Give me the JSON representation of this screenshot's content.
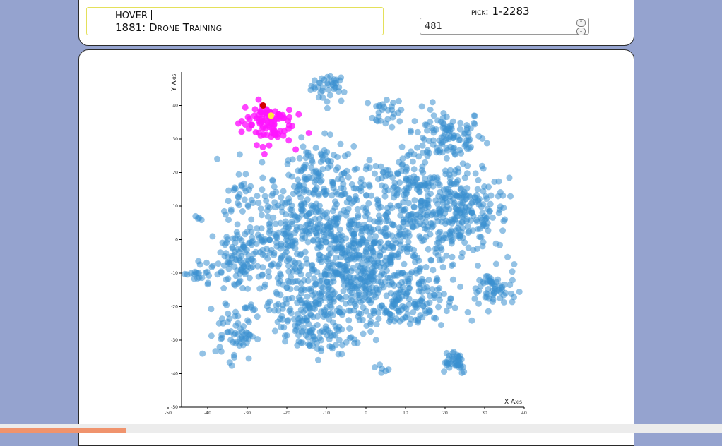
{
  "hover": {
    "label": "HOVER",
    "value": "1881: Drone Training"
  },
  "pick": {
    "label_prefix": "pick:",
    "range": "1-2283",
    "value": "481"
  },
  "colors": {
    "background": "#95a3cf",
    "point": "#3b8fd0",
    "selected_cluster": "#ff14ff",
    "picked_point": "#ffeb3b",
    "hover_point": "#d40000",
    "progress": "#f0936d"
  },
  "chart_data": {
    "type": "scatter",
    "xlabel": "X Axis",
    "ylabel": "Y Axis",
    "xlim": [
      -50,
      40
    ],
    "ylim": [
      -50,
      50
    ],
    "x_ticks": [
      "-50",
      "-40",
      "-30",
      "-20",
      "-10",
      "0",
      "10",
      "20",
      "30",
      "40"
    ],
    "y_ticks": [
      "-50",
      "-40",
      "-30",
      "-20",
      "-10",
      "0",
      "10",
      "20",
      "30",
      "40"
    ],
    "total_points": 2283,
    "clusters": [
      {
        "cx": -9,
        "cy": 46,
        "sx": 2.4,
        "sy": 2.6,
        "n": 45
      },
      {
        "cx": 5,
        "cy": 38,
        "sx": 2.2,
        "sy": 2.2,
        "n": 25
      },
      {
        "cx": 20,
        "cy": 31,
        "sx": 5,
        "sy": 4,
        "n": 110
      },
      {
        "cx": -32,
        "cy": 14,
        "sx": 2,
        "sy": 2.4,
        "n": 22
      },
      {
        "cx": -42,
        "cy": 6.5,
        "sx": 0.6,
        "sy": 0.4,
        "n": 4
      },
      {
        "cx": 24,
        "cy": 8,
        "sx": 6,
        "sy": 6,
        "n": 210
      },
      {
        "cx": -12,
        "cy": 17,
        "sx": 5,
        "sy": 6,
        "n": 140
      },
      {
        "cx": 12,
        "cy": 15,
        "sx": 7,
        "sy": 6,
        "n": 140
      },
      {
        "cx": -2,
        "cy": -9,
        "sx": 9,
        "sy": 8,
        "n": 430
      },
      {
        "cx": -30,
        "cy": -6,
        "sx": 5,
        "sy": 6,
        "n": 150
      },
      {
        "cx": -42,
        "cy": -11,
        "sx": 2,
        "sy": 1.4,
        "n": 18
      },
      {
        "cx": 32,
        "cy": -15,
        "sx": 3,
        "sy": 3,
        "n": 60
      },
      {
        "cx": -15,
        "cy": -20,
        "sx": 6,
        "sy": 5,
        "n": 150
      },
      {
        "cx": 10,
        "cy": -20,
        "sx": 6,
        "sy": 4,
        "n": 100
      },
      {
        "cx": -33,
        "cy": -28,
        "sx": 2.5,
        "sy": 4,
        "n": 55
      },
      {
        "cx": -10,
        "cy": -30,
        "sx": 4,
        "sy": 2.5,
        "n": 40
      },
      {
        "cx": 22,
        "cy": -36,
        "sx": 2,
        "sy": 2,
        "n": 40
      },
      {
        "cx": 4,
        "cy": -39,
        "sx": 1,
        "sy": 1,
        "n": 6
      },
      {
        "cx": 3,
        "cy": 3,
        "sx": 12,
        "sy": 10,
        "n": 300
      },
      {
        "cx": -20,
        "cy": 4,
        "sx": 6,
        "sy": 6,
        "n": 120
      }
    ],
    "selected_cluster": {
      "cx": -25,
      "cy": 35,
      "sx": 3.2,
      "sy": 3.2,
      "n": 95
    },
    "picked_point": {
      "x": -24,
      "y": 37
    },
    "hover_point": {
      "x": -26,
      "y": 40
    }
  }
}
